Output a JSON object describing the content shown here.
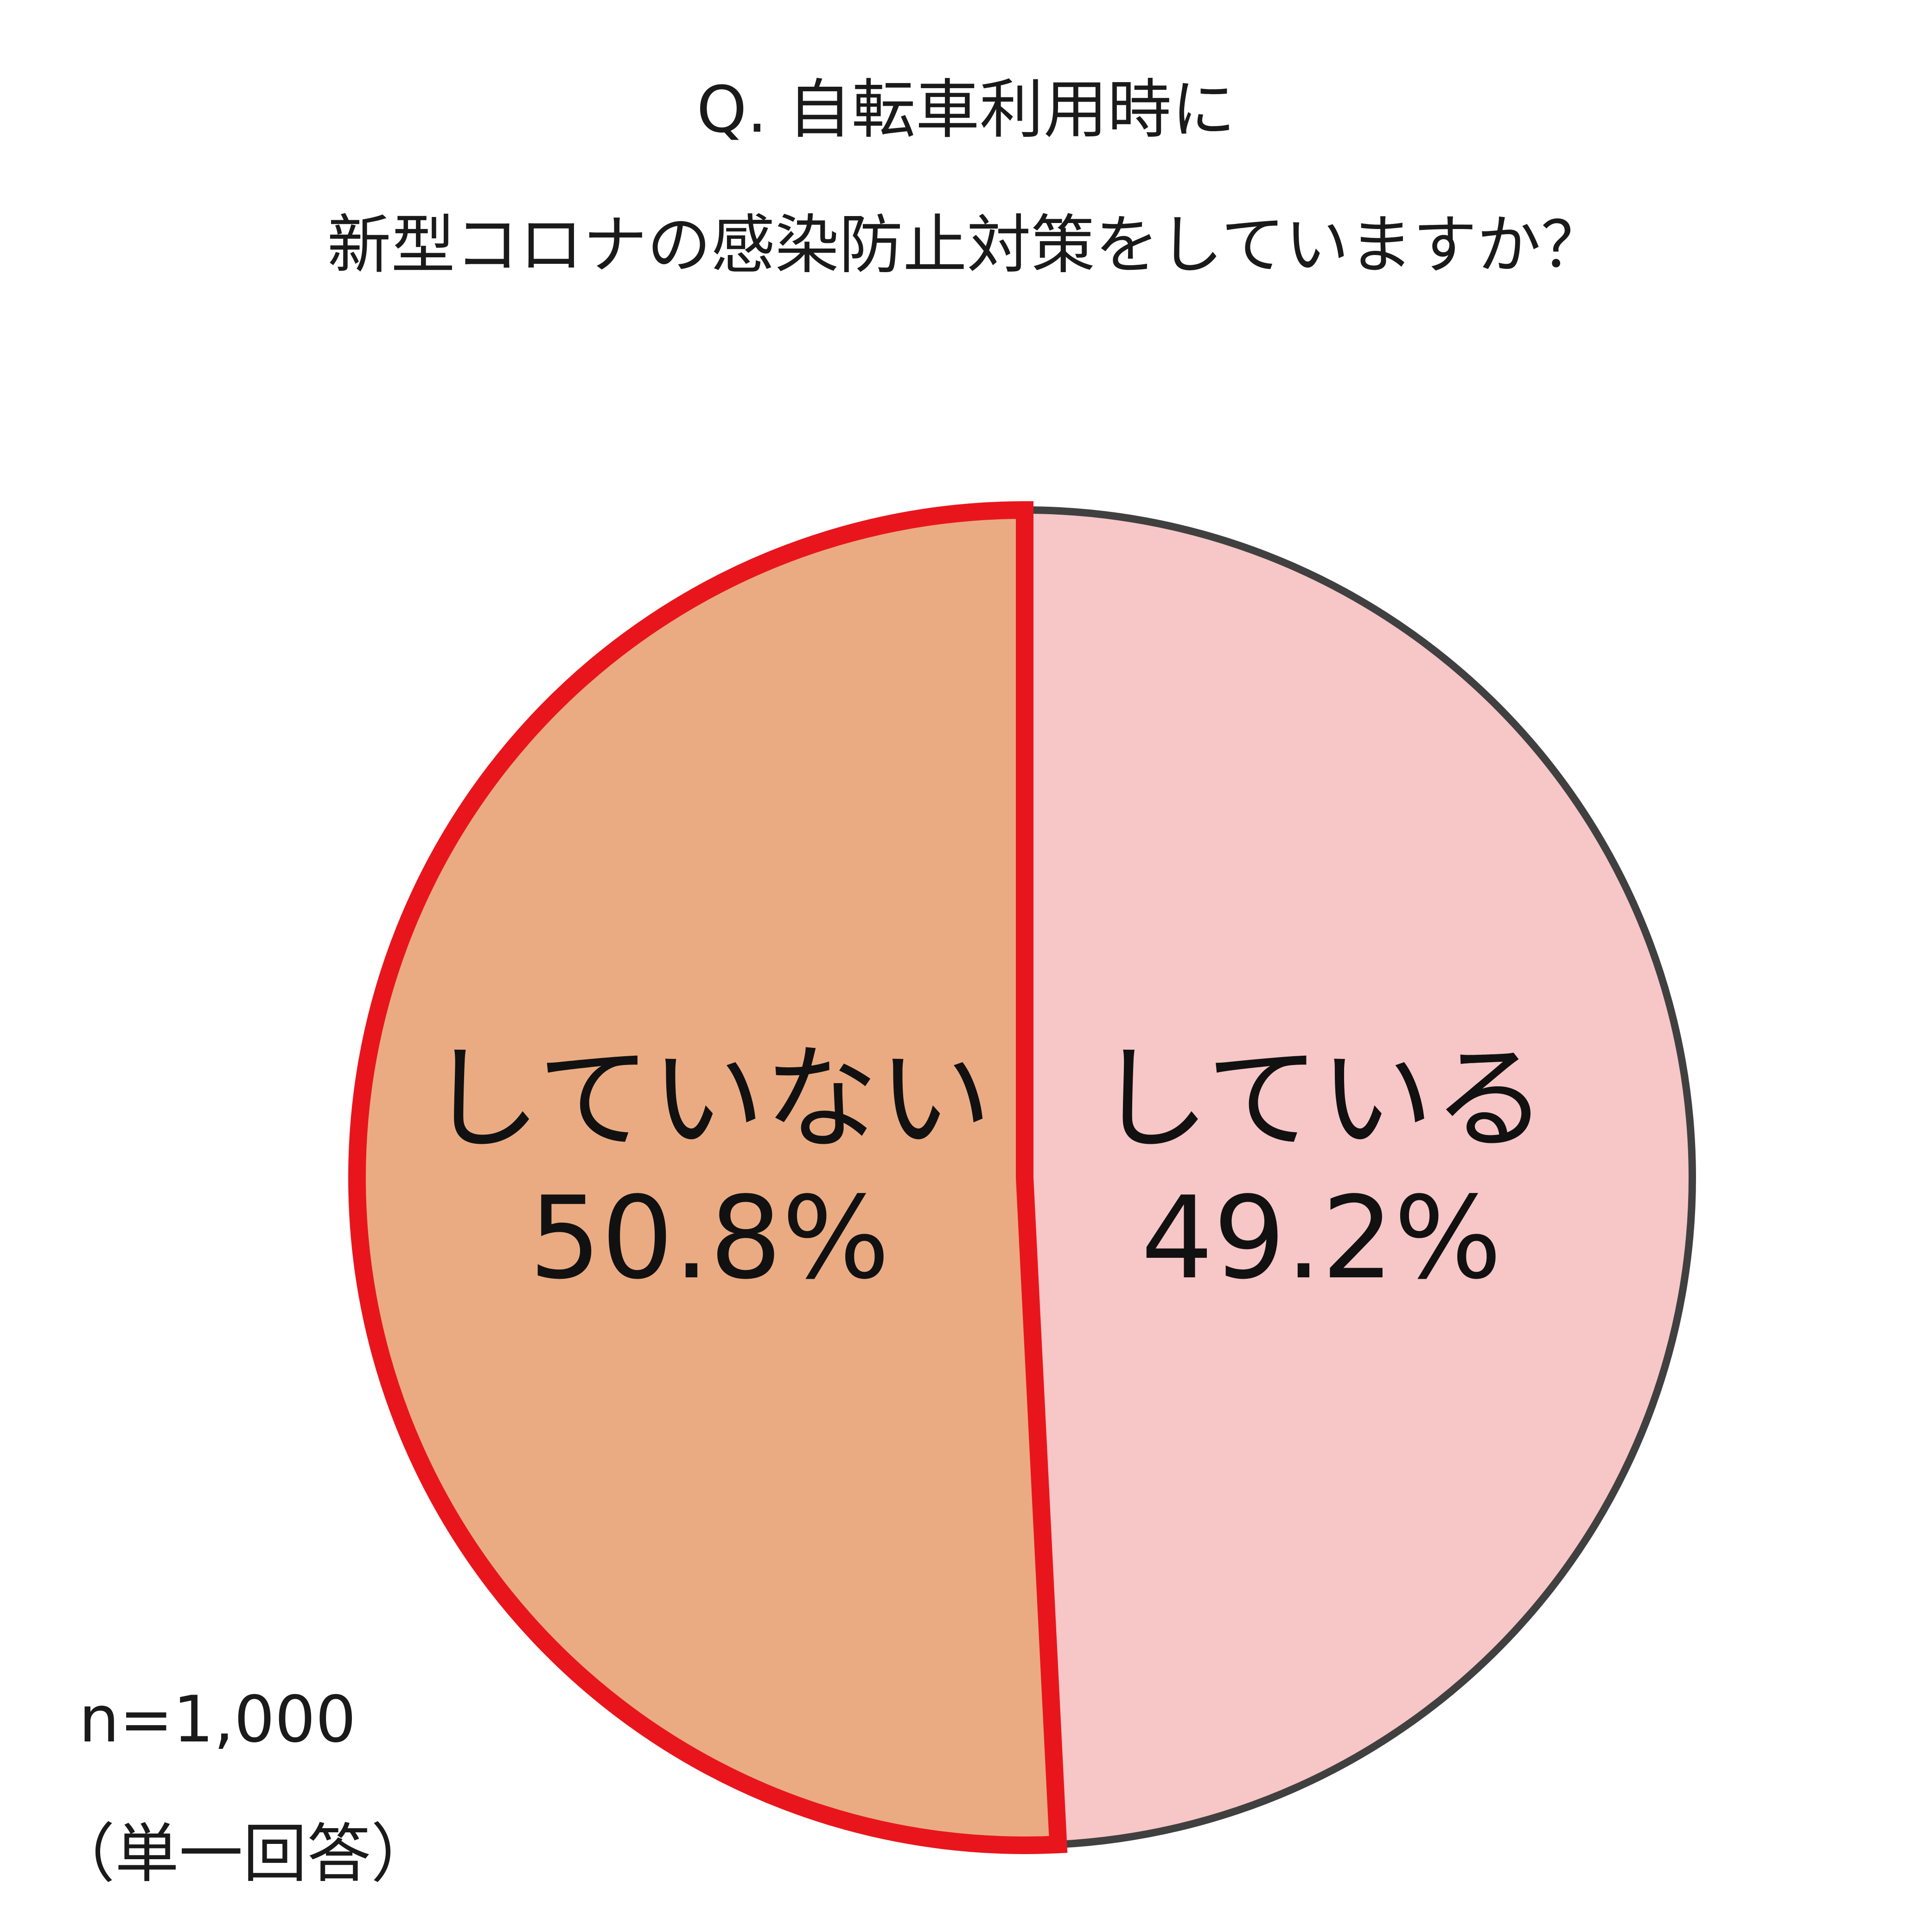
{
  "chart_data": {
    "type": "pie",
    "title_lines": [
      "Q. 自転車利用時に",
      "新型コロナの感染防止対策をしていますか？"
    ],
    "slices": [
      {
        "label": "していない",
        "value": 50.8,
        "value_label": "50.8%",
        "color": "#eaab83",
        "stroke": "#e8161c",
        "highlighted": true
      },
      {
        "label": "している",
        "value": 49.2,
        "value_label": "49.2%",
        "color": "#f7c6c6",
        "stroke": "#404040",
        "highlighted": false
      }
    ],
    "start": "12 o'clock",
    "direction": "counter-clockwise for first slice",
    "legend": "none",
    "notes": [
      "n=1,000",
      "（単一回答）"
    ]
  }
}
